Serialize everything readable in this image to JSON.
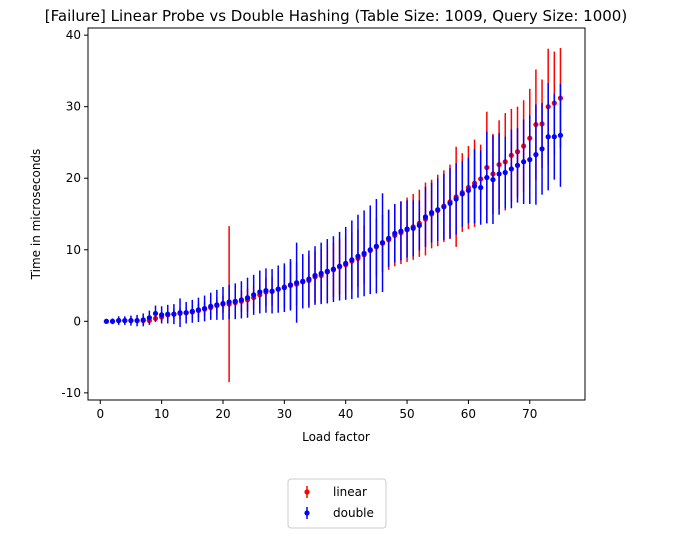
{
  "chart_data": {
    "type": "scatter",
    "title": "[Failure] Linear Probe vs Double Hashing (Table Size: 1009, Query Size: 1000)",
    "xlabel": "Load factor",
    "ylabel": "Time in microseconds",
    "xlim": [
      -2,
      79
    ],
    "ylim": [
      -11,
      41
    ],
    "xticks": [
      0,
      10,
      20,
      30,
      40,
      50,
      60,
      70
    ],
    "yticks": [
      -10,
      0,
      10,
      20,
      30,
      40
    ],
    "legend_position": "bottom-center",
    "error_bars": true,
    "series": [
      {
        "name": "linear",
        "color": "#ff0000",
        "x": [
          1,
          2,
          3,
          4,
          5,
          6,
          7,
          8,
          9,
          10,
          11,
          12,
          13,
          14,
          15,
          16,
          17,
          18,
          19,
          20,
          21,
          22,
          23,
          24,
          25,
          26,
          27,
          28,
          29,
          30,
          31,
          32,
          33,
          34,
          35,
          36,
          37,
          38,
          39,
          40,
          41,
          42,
          43,
          44,
          45,
          46,
          47,
          48,
          49,
          50,
          51,
          52,
          53,
          54,
          55,
          56,
          57,
          58,
          59,
          60,
          61,
          62,
          63,
          64,
          65,
          66,
          67,
          68,
          69,
          70,
          71,
          72,
          73,
          74,
          75
        ],
        "y": [
          0.0,
          0.0,
          0.1,
          0.1,
          0.1,
          0.1,
          0.1,
          0.1,
          0.4,
          0.6,
          0.9,
          1.0,
          1.1,
          1.2,
          1.3,
          1.5,
          1.7,
          1.9,
          2.2,
          2.4,
          2.4,
          2.6,
          2.8,
          3.0,
          3.3,
          3.7,
          4.1,
          4.2,
          4.5,
          4.8,
          5.0,
          5.2,
          5.5,
          5.7,
          6.2,
          6.4,
          6.9,
          7.2,
          7.6,
          7.9,
          8.4,
          8.8,
          9.3,
          9.9,
          10.4,
          10.9,
          11.4,
          12.0,
          12.4,
          12.8,
          13.2,
          13.7,
          14.3,
          15.0,
          15.5,
          16.1,
          16.7,
          17.4,
          18.0,
          18.7,
          19.3,
          19.9,
          21.5,
          20.6,
          21.9,
          22.3,
          23.2,
          23.7,
          24.5,
          25.6,
          27.5,
          27.6,
          30.0,
          30.5,
          31.2
        ],
        "err": [
          0.3,
          0.3,
          0.4,
          0.4,
          0.4,
          0.4,
          0.4,
          0.4,
          0.5,
          0.6,
          0.7,
          0.7,
          0.8,
          0.8,
          0.9,
          1.0,
          1.0,
          1.1,
          1.2,
          1.2,
          10.9,
          1.3,
          1.5,
          1.6,
          1.6,
          1.8,
          2.0,
          2.0,
          2.5,
          2.9,
          3.3,
          3.0,
          3.2,
          3.5,
          3.6,
          3.7,
          3.8,
          3.8,
          3.9,
          4.0,
          4.0,
          4.0,
          4.1,
          4.1,
          4.0,
          4.0,
          4.2,
          4.3,
          4.4,
          4.5,
          4.6,
          4.7,
          5.1,
          4.8,
          5.0,
          5.0,
          5.2,
          7.0,
          5.5,
          5.8,
          6.1,
          4.8,
          7.8,
          5.6,
          6.2,
          6.8,
          6.5,
          6.3,
          6.4,
          6.9,
          7.7,
          6.2,
          8.1,
          7.2,
          7.0
        ]
      },
      {
        "name": "double",
        "color": "#0000ff",
        "x": [
          1,
          2,
          3,
          4,
          5,
          6,
          7,
          8,
          9,
          10,
          11,
          12,
          13,
          14,
          15,
          16,
          17,
          18,
          19,
          20,
          21,
          22,
          23,
          24,
          25,
          26,
          27,
          28,
          29,
          30,
          31,
          32,
          33,
          34,
          35,
          36,
          37,
          38,
          39,
          40,
          41,
          42,
          43,
          44,
          45,
          46,
          47,
          48,
          49,
          50,
          51,
          52,
          53,
          54,
          55,
          56,
          57,
          58,
          59,
          60,
          61,
          62,
          63,
          64,
          65,
          66,
          67,
          68,
          69,
          70,
          71,
          72,
          73,
          74,
          75
        ],
        "y": [
          0.0,
          0.0,
          0.1,
          0.1,
          0.1,
          0.1,
          0.2,
          0.5,
          1.1,
          0.9,
          1.0,
          1.0,
          1.2,
          1.2,
          1.4,
          1.6,
          1.8,
          2.1,
          2.3,
          2.5,
          2.7,
          2.8,
          3.0,
          3.3,
          3.7,
          4.1,
          4.3,
          4.2,
          4.5,
          4.7,
          5.1,
          5.4,
          5.6,
          5.9,
          6.4,
          6.7,
          7.0,
          7.3,
          7.7,
          8.1,
          8.6,
          9.1,
          9.5,
          10.0,
          10.5,
          11.0,
          11.6,
          12.3,
          12.6,
          12.9,
          13.0,
          13.4,
          14.6,
          15.2,
          15.6,
          16.0,
          16.5,
          17.1,
          17.8,
          18.3,
          18.9,
          18.7,
          20.1,
          19.8,
          20.6,
          20.8,
          21.3,
          21.8,
          22.3,
          22.6,
          23.3,
          24.1,
          25.8,
          25.8,
          26.0
        ],
        "err": [
          0.3,
          0.4,
          0.6,
          0.6,
          0.7,
          0.8,
          0.9,
          1.0,
          1.1,
          1.2,
          1.3,
          1.4,
          2.0,
          1.5,
          1.6,
          1.7,
          1.8,
          1.9,
          2.1,
          2.3,
          2.4,
          2.5,
          2.6,
          2.8,
          2.8,
          3.0,
          3.1,
          3.1,
          3.3,
          3.4,
          3.6,
          5.6,
          3.8,
          4.0,
          4.1,
          4.3,
          4.5,
          4.6,
          4.8,
          5.1,
          5.5,
          5.8,
          6.0,
          6.2,
          6.6,
          6.9,
          4.0,
          4.1,
          4.1,
          4.0,
          3.9,
          3.5,
          4.2,
          4.2,
          4.4,
          4.6,
          4.9,
          5.0,
          4.6,
          4.6,
          5.2,
          5.2,
          6.4,
          6.2,
          5.7,
          5.0,
          5.5,
          5.2,
          5.9,
          6.2,
          7.0,
          6.4,
          7.5,
          6.0,
          7.2
        ]
      }
    ]
  }
}
